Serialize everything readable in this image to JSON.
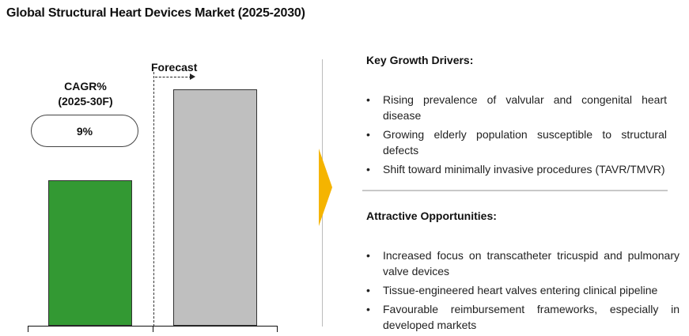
{
  "title": "Global Structural Heart Devices Market (2025-2030)",
  "chart_data": {
    "type": "bar",
    "categories": [
      "",
      ""
    ],
    "values": [
      185,
      300
    ],
    "colors": [
      "#339933",
      "#bfbfbf"
    ],
    "forecast_label": "Forecast",
    "cagr_label_line1": "CAGR%",
    "cagr_label_line2": "(2025-30F)",
    "cagr_value": "9%"
  },
  "key_growth_drivers": {
    "heading": "Key Growth Drivers:",
    "items": [
      "Rising prevalence of valvular and congenital heart disease",
      "Growing elderly population susceptible to structural defects",
      "Shift toward minimally invasive procedures (TAVR/TMVR)"
    ]
  },
  "attractive_opportunities": {
    "heading": "Attractive Opportunities:",
    "items": [
      "Increased focus on transcatheter tricuspid and pulmonary valve devices",
      "Tissue-engineered heart valves entering clinical pipeline",
      "Favourable reimbursement frameworks, especially in developed markets"
    ]
  },
  "accent_color": "#f5b400",
  "bullet_symbol": "•"
}
